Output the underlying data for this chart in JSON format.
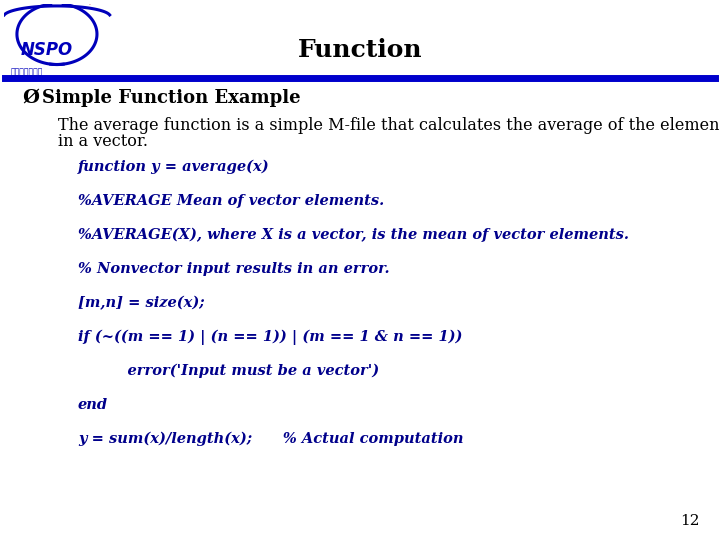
{
  "title": "Function",
  "title_fontsize": 18,
  "title_color": "#000000",
  "header_line_color": "#0000CC",
  "background_color": "#FFFFFF",
  "bullet_char": "Ø",
  "bullet_text": "Simple Function Example",
  "bullet_fontsize": 13,
  "bullet_color": "#000000",
  "body_text1": "The average function is a simple M-file that calculates the average of the elements",
  "body_text2": "in a vector.",
  "body_fontsize": 11.5,
  "body_color": "#000000",
  "code_color": "#00008B",
  "code_fontsize": 10.5,
  "code_lines": [
    [
      "function y = average(x)",
      0.13
    ],
    [
      "%AVERAGE Mean of vector elements.",
      0.13
    ],
    [
      "%AVERAGE(X), where X is a vector, is the mean of vector elements.",
      0.13
    ],
    [
      "% Nonvector input results in an error.",
      0.13
    ],
    [
      "[m,n] = size(x);",
      0.13
    ],
    [
      "if (~((m == 1) | (n == 1)) | (m == 1 & n == 1))",
      0.13
    ],
    [
      "    error('Input must be a vector')",
      0.17
    ],
    [
      "end",
      0.13
    ],
    [
      "y = sum(x)/length(x);      % Actual computation",
      0.13
    ]
  ],
  "page_number": "12"
}
